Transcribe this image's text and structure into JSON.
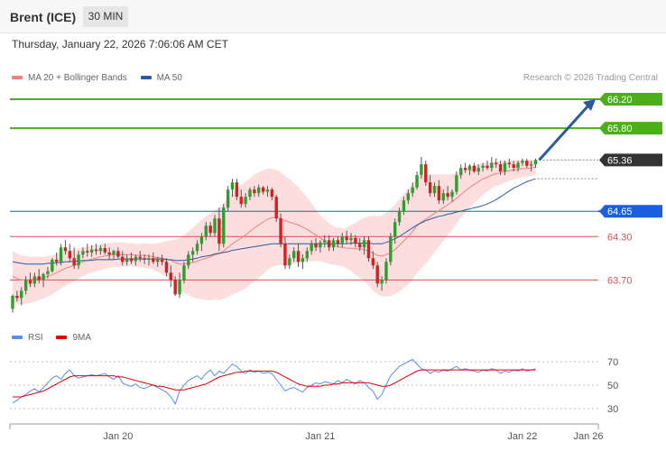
{
  "header": {
    "instrument": "Brent (ICE)",
    "timeframe": "30 MIN"
  },
  "datetime": "Thursday, January 22, 2026 7:06:06 AM CET",
  "legend": {
    "ma20_label": "MA 20 + Bollinger Bands",
    "ma20_color": "#f08080",
    "ma50_label": "MA 50",
    "ma50_color": "#2c5aa0"
  },
  "copyright": "Research © 2026 Trading Central",
  "rsi_legend": {
    "rsi_label": "RSI",
    "rsi_color": "#5b8def",
    "ma9_label": "9MA",
    "ma9_color": "#e00000"
  },
  "chart_data": {
    "type": "candlestick",
    "price_axis": {
      "range": [
        63.08,
        66.35
      ]
    },
    "levels": [
      {
        "label": "66.20",
        "value": 66.2,
        "color": "#4caf1a",
        "kind": "resistance"
      },
      {
        "label": "65.80",
        "value": 65.8,
        "color": "#4caf1a",
        "kind": "resistance"
      },
      {
        "label": "65.36",
        "value": 65.36,
        "color": "#333333",
        "kind": "last-price"
      },
      {
        "label": "64.65",
        "value": 64.65,
        "color": "#1a5fe0",
        "kind": "pivot"
      },
      {
        "label": "64.30",
        "value": 64.3,
        "color": "#e05050",
        "kind": "support"
      },
      {
        "label": "63.70",
        "value": 63.7,
        "color": "#e05050",
        "kind": "support"
      }
    ],
    "x_ticks": [
      {
        "label": "Jan 20",
        "index": 24
      },
      {
        "label": "Jan 21",
        "index": 70
      },
      {
        "label": "Jan 22",
        "index": 116
      },
      {
        "label": "Jan 26",
        "index": 131
      }
    ],
    "forecast_target": 66.2,
    "candles": [
      [
        63.3,
        63.5,
        63.25,
        63.48
      ],
      [
        63.48,
        63.55,
        63.4,
        63.45
      ],
      [
        63.45,
        63.6,
        63.35,
        63.55
      ],
      [
        63.55,
        63.75,
        63.5,
        63.7
      ],
      [
        63.7,
        63.8,
        63.6,
        63.65
      ],
      [
        63.65,
        63.8,
        63.6,
        63.75
      ],
      [
        63.75,
        63.85,
        63.65,
        63.7
      ],
      [
        63.7,
        63.8,
        63.6,
        63.78
      ],
      [
        63.78,
        63.88,
        63.72,
        63.82
      ],
      [
        63.82,
        64.0,
        63.8,
        63.98
      ],
      [
        63.98,
        64.08,
        63.9,
        63.95
      ],
      [
        63.95,
        64.2,
        63.9,
        64.15
      ],
      [
        64.15,
        64.25,
        64.05,
        64.1
      ],
      [
        64.1,
        64.2,
        63.95,
        64.0
      ],
      [
        64.0,
        64.15,
        63.85,
        63.9
      ],
      [
        63.9,
        64.1,
        63.85,
        64.05
      ],
      [
        64.05,
        64.15,
        64.0,
        64.1
      ],
      [
        64.1,
        64.2,
        64.02,
        64.08
      ],
      [
        64.08,
        64.18,
        64.02,
        64.12
      ],
      [
        64.12,
        64.2,
        64.05,
        64.1
      ],
      [
        64.1,
        64.18,
        64.05,
        64.14
      ],
      [
        64.14,
        64.2,
        64.05,
        64.08
      ],
      [
        64.08,
        64.15,
        63.98,
        64.05
      ],
      [
        64.05,
        64.12,
        63.98,
        64.1
      ],
      [
        64.1,
        64.15,
        64.0,
        64.02
      ],
      [
        64.02,
        64.1,
        63.9,
        63.95
      ],
      [
        63.95,
        64.05,
        63.9,
        64.0
      ],
      [
        64.0,
        64.08,
        63.92,
        63.96
      ],
      [
        63.96,
        64.05,
        63.9,
        64.02
      ],
      [
        64.02,
        64.1,
        63.95,
        64.0
      ],
      [
        64.0,
        64.05,
        63.92,
        63.98
      ],
      [
        63.98,
        64.05,
        63.9,
        64.0
      ],
      [
        64.0,
        64.08,
        63.92,
        63.95
      ],
      [
        63.95,
        64.02,
        63.88,
        63.98
      ],
      [
        63.98,
        64.05,
        63.9,
        63.95
      ],
      [
        63.95,
        64.0,
        63.75,
        63.8
      ],
      [
        63.8,
        63.9,
        63.6,
        63.7
      ],
      [
        63.7,
        63.75,
        63.48,
        63.5
      ],
      [
        63.5,
        63.8,
        63.45,
        63.7
      ],
      [
        63.7,
        63.95,
        63.65,
        63.9
      ],
      [
        63.9,
        64.1,
        63.85,
        64.05
      ],
      [
        64.05,
        64.15,
        63.95,
        64.1
      ],
      [
        64.1,
        64.25,
        64.05,
        64.2
      ],
      [
        64.2,
        64.35,
        64.1,
        64.3
      ],
      [
        64.3,
        64.5,
        64.25,
        64.45
      ],
      [
        64.45,
        64.5,
        64.3,
        64.35
      ],
      [
        64.35,
        64.6,
        64.3,
        64.55
      ],
      [
        64.55,
        64.7,
        64.1,
        64.2
      ],
      [
        64.2,
        64.75,
        64.15,
        64.7
      ],
      [
        64.7,
        65.0,
        64.65,
        64.95
      ],
      [
        64.95,
        65.1,
        64.85,
        65.05
      ],
      [
        65.05,
        65.1,
        64.8,
        64.85
      ],
      [
        64.85,
        64.95,
        64.7,
        64.75
      ],
      [
        64.75,
        64.9,
        64.7,
        64.85
      ],
      [
        64.85,
        64.98,
        64.8,
        64.95
      ],
      [
        64.95,
        65.0,
        64.85,
        64.9
      ],
      [
        64.9,
        65.02,
        64.85,
        64.98
      ],
      [
        64.98,
        65.0,
        64.88,
        64.92
      ],
      [
        64.92,
        65.0,
        64.85,
        64.95
      ],
      [
        64.95,
        64.98,
        64.8,
        64.85
      ],
      [
        64.85,
        64.88,
        64.5,
        64.55
      ],
      [
        64.55,
        64.62,
        64.15,
        64.2
      ],
      [
        64.2,
        64.3,
        63.85,
        63.9
      ],
      [
        63.9,
        64.05,
        63.85,
        64.0
      ],
      [
        64.0,
        64.15,
        63.95,
        64.1
      ],
      [
        64.1,
        64.2,
        63.88,
        63.95
      ],
      [
        63.95,
        64.05,
        63.85,
        64.0
      ],
      [
        64.0,
        64.15,
        63.95,
        64.1
      ],
      [
        64.1,
        64.25,
        64.05,
        64.2
      ],
      [
        64.2,
        64.28,
        64.1,
        64.15
      ],
      [
        64.15,
        64.25,
        64.08,
        64.22
      ],
      [
        64.22,
        64.32,
        64.15,
        64.25
      ],
      [
        64.25,
        64.32,
        64.1,
        64.15
      ],
      [
        64.15,
        64.28,
        64.1,
        64.25
      ],
      [
        64.25,
        64.3,
        64.15,
        64.2
      ],
      [
        64.2,
        64.35,
        64.15,
        64.3
      ],
      [
        64.3,
        64.38,
        64.2,
        64.25
      ],
      [
        64.25,
        64.35,
        64.18,
        64.28
      ],
      [
        64.28,
        64.32,
        64.15,
        64.2
      ],
      [
        64.2,
        64.28,
        64.1,
        64.15
      ],
      [
        64.15,
        64.3,
        64.05,
        64.25
      ],
      [
        64.25,
        64.3,
        63.95,
        64.0
      ],
      [
        64.0,
        64.1,
        63.85,
        63.9
      ],
      [
        63.9,
        63.95,
        63.6,
        63.65
      ],
      [
        63.65,
        63.75,
        63.55,
        63.7
      ],
      [
        63.7,
        64.0,
        63.65,
        63.95
      ],
      [
        63.95,
        64.35,
        63.9,
        64.3
      ],
      [
        64.3,
        64.55,
        64.2,
        64.5
      ],
      [
        64.5,
        64.7,
        64.45,
        64.65
      ],
      [
        64.65,
        64.85,
        64.6,
        64.8
      ],
      [
        64.8,
        64.95,
        64.75,
        64.9
      ],
      [
        64.9,
        65.05,
        64.85,
        64.98
      ],
      [
        64.98,
        65.2,
        64.95,
        65.15
      ],
      [
        65.15,
        65.4,
        65.1,
        65.3
      ],
      [
        65.3,
        65.35,
        65.0,
        65.05
      ],
      [
        65.05,
        65.15,
        64.85,
        64.9
      ],
      [
        64.9,
        65.05,
        64.85,
        65.0
      ],
      [
        65.0,
        65.08,
        64.75,
        64.8
      ],
      [
        64.8,
        64.95,
        64.75,
        64.9
      ],
      [
        64.9,
        65.0,
        64.8,
        64.85
      ],
      [
        64.85,
        64.95,
        64.78,
        64.92
      ],
      [
        64.92,
        65.2,
        64.88,
        65.15
      ],
      [
        65.15,
        65.3,
        65.1,
        65.25
      ],
      [
        65.25,
        65.32,
        65.18,
        65.22
      ],
      [
        65.22,
        65.3,
        65.15,
        65.28
      ],
      [
        65.28,
        65.32,
        65.18,
        65.2
      ],
      [
        65.2,
        65.3,
        65.15,
        65.25
      ],
      [
        65.25,
        65.32,
        65.2,
        65.28
      ],
      [
        65.28,
        65.35,
        65.22,
        65.25
      ],
      [
        65.25,
        65.4,
        65.2,
        65.32
      ],
      [
        65.32,
        65.38,
        65.25,
        65.3
      ],
      [
        65.3,
        65.35,
        65.15,
        65.2
      ],
      [
        65.2,
        65.35,
        65.15,
        65.32
      ],
      [
        65.32,
        65.38,
        65.25,
        65.3
      ],
      [
        65.3,
        65.35,
        65.2,
        65.25
      ],
      [
        65.25,
        65.35,
        65.2,
        65.32
      ],
      [
        65.32,
        65.38,
        65.28,
        65.35
      ],
      [
        65.35,
        65.38,
        65.25,
        65.28
      ],
      [
        65.28,
        65.35,
        65.2,
        65.3
      ],
      [
        65.3,
        65.38,
        65.25,
        65.36
      ]
    ],
    "ma20": [
      63.75,
      63.72,
      63.7,
      63.7,
      63.7,
      63.71,
      63.72,
      63.73,
      63.75,
      63.77,
      63.8,
      63.83,
      63.86,
      63.88,
      63.9,
      63.93,
      63.95,
      63.97,
      63.99,
      64.0,
      64.02,
      64.03,
      64.04,
      64.05,
      64.05,
      64.05,
      64.05,
      64.05,
      64.04,
      64.04,
      64.04,
      64.03,
      64.02,
      64.01,
      64.0,
      63.99,
      63.97,
      63.94,
      63.92,
      63.92,
      63.93,
      63.94,
      63.96,
      63.98,
      64.0,
      64.02,
      64.05,
      64.06,
      64.1,
      64.15,
      64.2,
      64.24,
      64.28,
      64.32,
      64.37,
      64.42,
      64.46,
      64.5,
      64.54,
      64.56,
      64.56,
      64.55,
      64.52,
      64.5,
      64.48,
      64.46,
      64.43,
      64.4,
      64.36,
      64.32,
      64.28,
      64.24,
      64.2,
      64.18,
      64.16,
      64.15,
      64.14,
      64.14,
      64.13,
      64.13,
      64.12,
      64.1,
      64.07,
      64.04,
      64.03,
      64.05,
      64.08,
      64.12,
      64.18,
      64.24,
      64.3,
      64.37,
      64.45,
      64.5,
      64.54,
      64.58,
      64.62,
      64.66,
      64.7,
      64.74,
      64.78,
      64.83,
      64.88,
      64.93,
      64.98,
      65.02,
      65.06,
      65.1,
      65.12,
      65.15,
      65.17,
      65.18,
      65.2,
      65.21,
      65.22,
      65.23,
      65.24,
      65.24,
      65.25,
      65.26
    ],
    "ma50": [
      63.95,
      63.94,
      63.93,
      63.92,
      63.92,
      63.92,
      63.92,
      63.92,
      63.93,
      63.93,
      63.94,
      63.94,
      63.95,
      63.95,
      63.96,
      63.96,
      63.97,
      63.97,
      63.97,
      63.98,
      63.98,
      63.98,
      63.98,
      63.98,
      63.99,
      63.99,
      63.99,
      63.99,
      63.99,
      63.99,
      63.99,
      63.99,
      63.99,
      63.99,
      63.99,
      63.98,
      63.98,
      63.97,
      63.97,
      63.97,
      63.98,
      63.99,
      64.0,
      64.02,
      64.03,
      64.04,
      64.06,
      64.07,
      64.08,
      64.09,
      64.11,
      64.12,
      64.13,
      64.14,
      64.15,
      64.16,
      64.17,
      64.18,
      64.19,
      64.2,
      64.2,
      64.2,
      64.2,
      64.2,
      64.2,
      64.2,
      64.2,
      64.2,
      64.2,
      64.2,
      64.2,
      64.2,
      64.2,
      64.2,
      64.2,
      64.2,
      64.2,
      64.21,
      64.21,
      64.21,
      64.21,
      64.21,
      64.2,
      64.2,
      64.2,
      64.22,
      64.24,
      64.27,
      64.3,
      64.34,
      64.38,
      64.42,
      64.46,
      64.49,
      64.52,
      64.54,
      64.56,
      64.58,
      64.59,
      64.61,
      64.62,
      64.64,
      64.65,
      64.67,
      64.68,
      64.7,
      64.71,
      64.73,
      64.75,
      64.78,
      64.81,
      64.85,
      64.89,
      64.93,
      64.97,
      65.0,
      65.03,
      65.06,
      65.08,
      65.1
    ],
    "bb_width": [
      0.35,
      0.35,
      0.34,
      0.33,
      0.32,
      0.31,
      0.3,
      0.29,
      0.28,
      0.27,
      0.26,
      0.25,
      0.24,
      0.23,
      0.22,
      0.21,
      0.2,
      0.19,
      0.19,
      0.18,
      0.18,
      0.18,
      0.17,
      0.17,
      0.17,
      0.17,
      0.16,
      0.16,
      0.16,
      0.16,
      0.17,
      0.17,
      0.18,
      0.2,
      0.22,
      0.25,
      0.28,
      0.32,
      0.36,
      0.4,
      0.44,
      0.48,
      0.52,
      0.55,
      0.58,
      0.6,
      0.62,
      0.64,
      0.66,
      0.68,
      0.7,
      0.72,
      0.73,
      0.74,
      0.74,
      0.74,
      0.73,
      0.72,
      0.7,
      0.68,
      0.66,
      0.64,
      0.62,
      0.6,
      0.56,
      0.52,
      0.48,
      0.44,
      0.4,
      0.36,
      0.32,
      0.3,
      0.28,
      0.27,
      0.26,
      0.26,
      0.28,
      0.32,
      0.36,
      0.4,
      0.44,
      0.48,
      0.52,
      0.54,
      0.56,
      0.58,
      0.6,
      0.62,
      0.64,
      0.65,
      0.66,
      0.66,
      0.66,
      0.64,
      0.62,
      0.58,
      0.54,
      0.5,
      0.46,
      0.42,
      0.38,
      0.35,
      0.32,
      0.3,
      0.28,
      0.26,
      0.24,
      0.22,
      0.2,
      0.18,
      0.17,
      0.16,
      0.15,
      0.14,
      0.13,
      0.12,
      0.12,
      0.11,
      0.11,
      0.1
    ],
    "rsi_panel": {
      "ticks": [
        70,
        50,
        30
      ],
      "range": [
        20,
        80
      ],
      "rsi": [
        35,
        37,
        40,
        42,
        45,
        47,
        44,
        48,
        52,
        56,
        58,
        55,
        60,
        63,
        58,
        56,
        57,
        58,
        59,
        58,
        59,
        60,
        57,
        55,
        58,
        52,
        50,
        49,
        51,
        48,
        47,
        49,
        50,
        48,
        46,
        44,
        40,
        34,
        45,
        50,
        54,
        56,
        58,
        55,
        60,
        63,
        58,
        62,
        60,
        64,
        68,
        66,
        62,
        60,
        63,
        61,
        62,
        60,
        61,
        60,
        55,
        50,
        45,
        47,
        48,
        46,
        44,
        48,
        50,
        52,
        51,
        53,
        52,
        51,
        54,
        52,
        55,
        53,
        51,
        54,
        52,
        48,
        45,
        38,
        42,
        50,
        58,
        62,
        66,
        68,
        70,
        72,
        68,
        64,
        63,
        60,
        62,
        61,
        63,
        62,
        64,
        66,
        63,
        64,
        63,
        62,
        61,
        63,
        62,
        64,
        63,
        60,
        62,
        61,
        63,
        62,
        64,
        62,
        63,
        64
      ],
      "ma9": [
        40,
        40,
        40,
        41,
        42,
        43,
        44,
        45,
        47,
        49,
        51,
        53,
        55,
        57,
        58,
        58,
        58,
        58,
        58,
        58,
        58,
        58,
        58,
        58,
        57,
        57,
        56,
        55,
        54,
        53,
        52,
        51,
        50,
        49,
        49,
        48,
        47,
        46,
        46,
        46,
        47,
        48,
        49,
        50,
        51,
        53,
        55,
        57,
        58,
        59,
        60,
        61,
        61,
        62,
        62,
        62,
        62,
        62,
        62,
        62,
        61,
        59,
        57,
        55,
        53,
        51,
        50,
        49,
        49,
        49,
        49,
        50,
        50,
        51,
        51,
        52,
        52,
        52,
        52,
        52,
        52,
        52,
        51,
        50,
        49,
        49,
        50,
        52,
        54,
        56,
        58,
        60,
        62,
        63,
        63,
        63,
        63,
        63,
        63,
        63,
        63,
        63,
        63,
        63,
        63,
        63,
        63,
        63,
        63,
        63,
        63,
        63,
        63,
        63,
        63,
        63,
        63,
        63,
        63,
        63
      ]
    }
  }
}
